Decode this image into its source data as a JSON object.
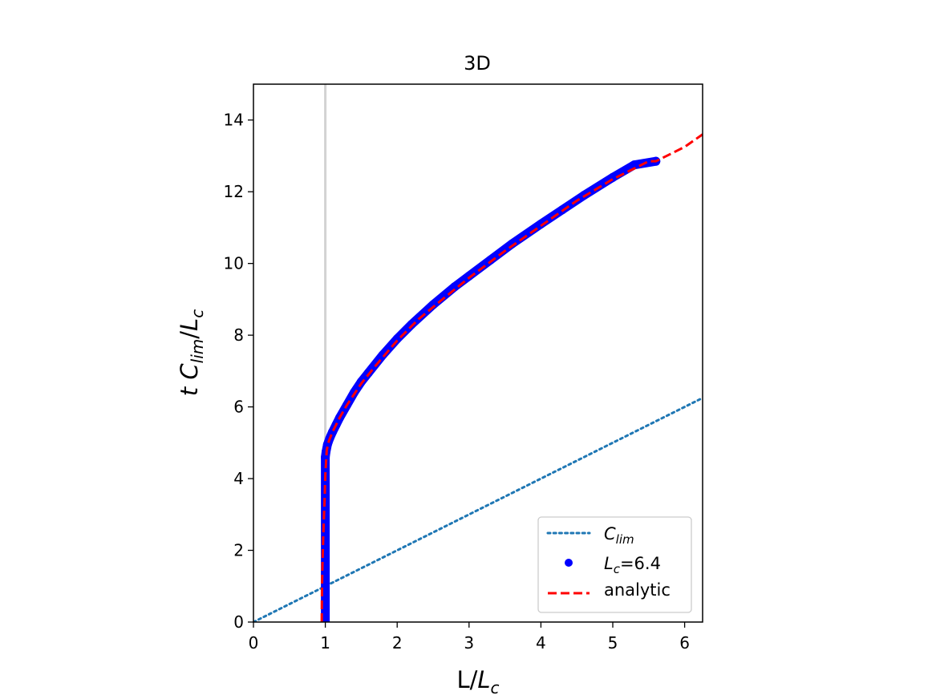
{
  "chart_data": {
    "type": "line",
    "title": "3D",
    "xlabel": {
      "base": "L/",
      "var": "L",
      "sub": "c"
    },
    "ylabel": {
      "pre": "t ",
      "var1": "C",
      "sub1": "lim",
      "mid": "/",
      "var2": "L",
      "sub2": "c"
    },
    "xlim": [
      0,
      6.25
    ],
    "ylim": [
      0,
      15
    ],
    "xticks": [
      0,
      1,
      2,
      3,
      4,
      5,
      6
    ],
    "yticks": [
      0,
      2,
      4,
      6,
      8,
      10,
      12,
      14
    ],
    "grid": false,
    "reference_line": {
      "x": 1,
      "color": "#d3d3d3"
    },
    "legend": {
      "placement": "lower-right",
      "entries": [
        {
          "key": "clim",
          "var": "C",
          "sub": "lim",
          "rest": ""
        },
        {
          "key": "lc",
          "var": "L",
          "sub": "c",
          "rest": "=6.4"
        },
        {
          "key": "analytic",
          "var": "",
          "sub": "",
          "rest": "analytic"
        }
      ]
    },
    "series": [
      {
        "key": "clim",
        "style": "dotted",
        "color": "#1f77b4",
        "x": [
          0,
          6.25
        ],
        "y": [
          0,
          6.25
        ]
      },
      {
        "key": "lc",
        "style": "markers",
        "color": "#0000ff",
        "x": [
          1.0,
          1.0,
          1.01,
          1.03,
          1.06,
          1.1,
          1.15,
          1.2,
          1.3,
          1.4,
          1.5,
          1.6,
          1.8,
          2.0,
          2.2,
          2.5,
          2.8,
          3.0,
          3.3,
          3.6,
          4.0,
          4.3,
          4.6,
          5.0,
          5.3,
          5.6
        ],
        "y": [
          0.0,
          4.6,
          4.75,
          4.95,
          5.12,
          5.3,
          5.5,
          5.7,
          6.05,
          6.4,
          6.7,
          6.95,
          7.45,
          7.9,
          8.3,
          8.85,
          9.35,
          9.65,
          10.1,
          10.55,
          11.1,
          11.5,
          11.9,
          12.4,
          12.75,
          12.85
        ]
      },
      {
        "key": "analytic",
        "style": "dashed",
        "color": "#ff0000",
        "x": [
          0.95,
          0.952,
          0.955,
          0.96,
          0.97,
          0.98,
          0.99,
          1.0,
          1.02,
          1.05,
          1.1,
          1.2,
          1.3,
          1.5,
          1.7,
          2.0,
          2.3,
          2.6,
          3.0,
          3.5,
          4.0,
          4.5,
          5.0,
          5.5,
          5.6,
          6.0,
          6.25
        ],
        "y": [
          0.0,
          0.6,
          1.1,
          1.6,
          2.3,
          2.9,
          3.4,
          4.1,
          4.8,
          5.05,
          5.3,
          5.7,
          6.05,
          6.65,
          7.15,
          7.85,
          8.45,
          8.95,
          9.6,
          10.35,
          11.05,
          11.75,
          12.35,
          12.85,
          12.85,
          13.25,
          13.6
        ]
      }
    ]
  }
}
